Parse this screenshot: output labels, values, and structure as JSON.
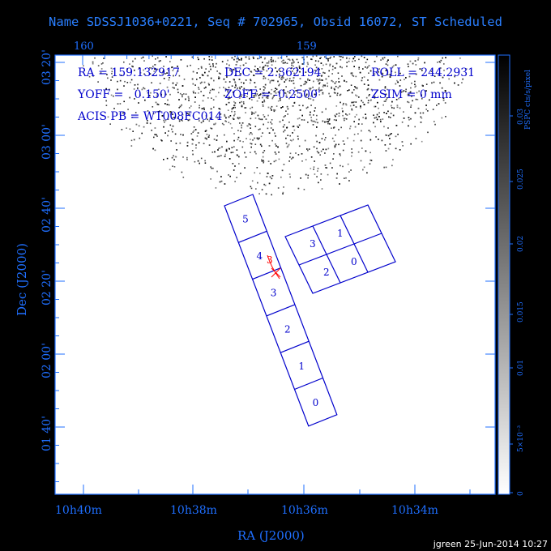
{
  "title": "Name SDSSJ1036+0221, Seq # 702965, Obsid 16072, ST Scheduled",
  "top_ticks": [
    "160",
    "159"
  ],
  "bottom_ticks": [
    "10h40m",
    "10h38m",
    "10h36m",
    "10h34m"
  ],
  "left_ticks": [
    "03 20'",
    "03 00'",
    "02 40'",
    "02 20'",
    "02 00'",
    "01 40'"
  ],
  "xlabel": "RA (J2000)",
  "ylabel": "Dec (J2000)",
  "info": {
    "ra": "RA = 159.132917",
    "dec": "DEC = 2.362194",
    "roll": "ROLL = 244.2931",
    "yoff": "YOFF =   0.150'",
    "zoff": "ZOFF = -0.2500'",
    "zsim": "ZSIM = 0 mm",
    "acis": "ACIS PB = WT008FC014"
  },
  "colorbar": {
    "label": "PSPC cts/s/pixel",
    "ticks": [
      "0.03",
      "0.025",
      "0.02",
      "0.015",
      "0.01",
      "5×10⁻³",
      "0"
    ]
  },
  "chips_i": [
    "5",
    "4",
    "3",
    "2",
    "1",
    "0"
  ],
  "chips_s": [
    "3",
    "1",
    "2",
    "0"
  ],
  "marker": "3",
  "footer": "jgreen 25-Jun-2014 10:27",
  "colors": {
    "axis": "#1f6fff",
    "plot_bg": "#ffffff",
    "chips": "#0000cc",
    "marker": "#ff0000"
  }
}
